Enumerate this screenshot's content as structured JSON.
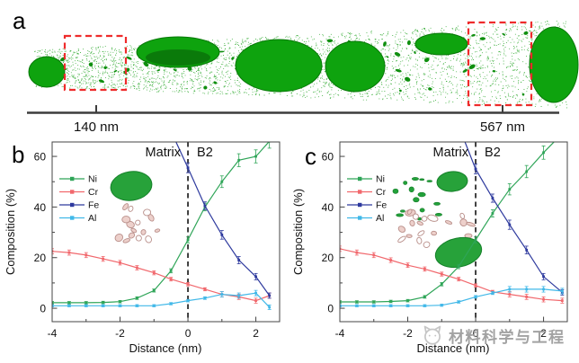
{
  "figure": {
    "panel_a": {
      "label": "a",
      "scale_left": "140 nm",
      "scale_right": "567 nm",
      "colors": {
        "speckle": "#23a523",
        "precipitate": "#0ea30e",
        "box": "#ee2b2b",
        "axis": "#3c3c3c"
      }
    },
    "panel_b": {
      "label": "b"
    },
    "panel_c": {
      "label": "c"
    },
    "watermark": {
      "text": "材料科学与工程",
      "logo_icon": "cat-face",
      "color": "#9b9b9b"
    }
  },
  "chart_data": [
    {
      "id": "b",
      "type": "line",
      "xlabel": "Distance (nm)",
      "ylabel": "Composition (%)",
      "xlim": [
        -4,
        2.7
      ],
      "ylim": [
        -5.3,
        65.7
      ],
      "xticks": [
        -4,
        -2,
        0,
        2
      ],
      "yticks": [
        0,
        20,
        40,
        60
      ],
      "xticks_minor": [
        -3,
        -1,
        1
      ],
      "yticks_minor": [
        10,
        30,
        50
      ],
      "vline_x": 0,
      "annotations": {
        "left": "Matrix",
        "right": "B2"
      },
      "legend_position": "upper-left",
      "x": [
        -4,
        -3.5,
        -3,
        -2.5,
        -2,
        -1.5,
        -1,
        -0.5,
        0,
        0.5,
        1,
        1.5,
        2,
        2.4
      ],
      "series": [
        {
          "name": "Ni",
          "color": "#2fa558",
          "values": [
            2.2,
            2.2,
            2.2,
            2.3,
            2.6,
            4,
            7,
            14.8,
            27,
            40,
            50,
            58.5,
            60,
            66
          ]
        },
        {
          "name": "Cr",
          "color": "#f1686d",
          "values": [
            22.5,
            22,
            21,
            19.5,
            18,
            16,
            14,
            11.5,
            9.5,
            7.5,
            5.5,
            4.5,
            3,
            5
          ]
        },
        {
          "name": "Fe",
          "color": "#2e3a9e",
          "values": [
            null,
            null,
            null,
            null,
            null,
            null,
            null,
            70,
            55.5,
            40.5,
            29,
            19,
            12.5,
            5
          ]
        },
        {
          "name": "Al",
          "color": "#41b8e8",
          "values": [
            1,
            1,
            1,
            1,
            1,
            1,
            1,
            1.8,
            3,
            4,
            5.5,
            5,
            6,
            0.4
          ]
        }
      ]
    },
    {
      "id": "c",
      "type": "line",
      "xlabel": "Distance (nm)",
      "ylabel": "Composition (%)",
      "xlim": [
        -4,
        2.7
      ],
      "ylim": [
        -5.3,
        65.7
      ],
      "xticks": [
        -4,
        -2,
        0,
        2
      ],
      "yticks": [
        0,
        20,
        40,
        60
      ],
      "xticks_minor": [
        -3,
        -1,
        1
      ],
      "yticks_minor": [
        10,
        30,
        50
      ],
      "vline_x": 0,
      "annotations": {
        "left": "Matrix",
        "right": "B2"
      },
      "legend_position": "upper-left",
      "x": [
        -4,
        -3.5,
        -3,
        -2.5,
        -2,
        -1.5,
        -1,
        -0.5,
        0,
        0.5,
        1,
        1.5,
        2,
        2.55
      ],
      "series": [
        {
          "name": "Ni",
          "color": "#2fa558",
          "values": [
            2.5,
            2.5,
            2.5,
            2.7,
            3,
            4.5,
            9.5,
            16.5,
            27,
            37.5,
            47,
            54,
            61.5,
            69
          ]
        },
        {
          "name": "Cr",
          "color": "#f1686d",
          "values": [
            23.5,
            22,
            21,
            19,
            17,
            15.5,
            13.5,
            11.5,
            9,
            6.5,
            5.5,
            4.5,
            3.5,
            3
          ]
        },
        {
          "name": "Fe",
          "color": "#2e3a9e",
          "values": [
            null,
            null,
            null,
            null,
            null,
            null,
            null,
            72,
            55,
            43.5,
            33,
            23,
            12.5,
            6.3
          ]
        },
        {
          "name": "Al",
          "color": "#41b8e8",
          "values": [
            1,
            1,
            1,
            1,
            1,
            1,
            1.2,
            2.5,
            4.5,
            6,
            7.5,
            7.5,
            7.5,
            6.8
          ]
        }
      ]
    }
  ]
}
